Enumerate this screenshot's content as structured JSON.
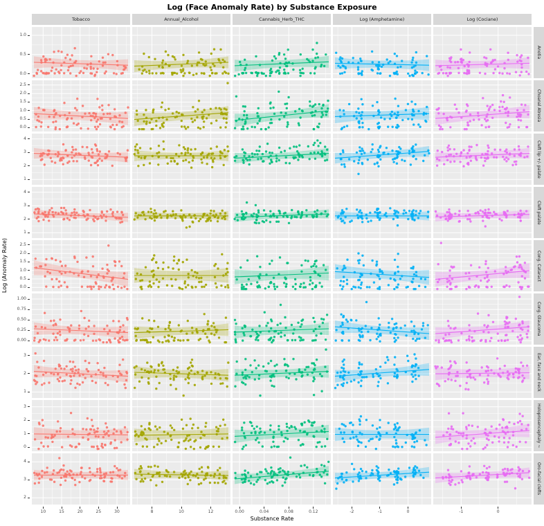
{
  "title": "Log (Face Anomaly Rate) by Substance Exposure",
  "x_axis_label": "Substance Rate",
  "y_axis_label": "Log (Anomaly Rate)",
  "chart_data": {
    "type": "scatter",
    "facet": "grid",
    "legend": "none",
    "panel_bg": "#EBEBEB",
    "strip_bg": "#D8D8D8",
    "gridline_color": "#FFFFFF",
    "n_points": 85,
    "columns": [
      {
        "label": "Tobacco",
        "color": "#F8766D",
        "xmin": 7.5,
        "xmax": 33,
        "ticks": [
          [
            10,
            "10"
          ],
          [
            15,
            "15"
          ],
          [
            20,
            "20"
          ],
          [
            25,
            "25"
          ],
          [
            30,
            "30"
          ]
        ]
      },
      {
        "label": "Annual_Alcohol",
        "color": "#A3A500",
        "xmin": 6.8,
        "xmax": 13.2,
        "ticks": [
          [
            8,
            "8"
          ],
          [
            10,
            "10"
          ],
          [
            12,
            "12"
          ]
        ]
      },
      {
        "label": "Cannabis_Herb_THC",
        "color": "#00BF7D",
        "xmin": -0.008,
        "xmax": 0.145,
        "ticks": [
          [
            0,
            "0.00"
          ],
          [
            0.04,
            "0.04"
          ],
          [
            0.08,
            "0.08"
          ],
          [
            0.12,
            "0.12"
          ]
        ],
        "xlevels": [
          0.1,
          0.25,
          0.4,
          0.55,
          0.7,
          0.85
        ],
        "snap": 0.35
      },
      {
        "label": "Log (Amphetamine)",
        "color": "#00B0F6",
        "xmin": -2.6,
        "xmax": 0.75,
        "ticks": [
          [
            -2,
            "-2"
          ],
          [
            -1,
            "-1"
          ],
          [
            0,
            "0"
          ]
        ],
        "xlevels": [
          0.08,
          0.27,
          0.46,
          0.65,
          0.84
        ],
        "snap": 0.55
      },
      {
        "label": "Log (Cociane)",
        "color": "#E76BF3",
        "xmin": -1.7,
        "xmax": 0.85,
        "ticks": [
          [
            -1,
            "-1"
          ],
          [
            0,
            "0"
          ]
        ],
        "xlevels": [
          0.15,
          0.35,
          0.55,
          0.75,
          0.9
        ],
        "snap": 0.4
      }
    ],
    "rows": [
      {
        "label": "Anotia",
        "ymin": -0.08,
        "ymax": 1.18,
        "ticks": [
          [
            0,
            "0.0"
          ],
          [
            0.5,
            "0.5"
          ],
          [
            1,
            "1.0"
          ]
        ]
      },
      {
        "label": "Choanal Atresia",
        "ymin": -0.15,
        "ymax": 2.7,
        "ticks": [
          [
            0,
            "0.0"
          ],
          [
            0.5,
            "0.5"
          ],
          [
            1,
            "1.0"
          ],
          [
            1.5,
            "1.5"
          ],
          [
            2,
            "2.0"
          ],
          [
            2.5,
            "2.5"
          ]
        ]
      },
      {
        "label": "Cleft lip +/- palate",
        "ymin": 0.7,
        "ymax": 4.3,
        "ticks": [
          [
            1,
            "1"
          ],
          [
            2,
            "2"
          ],
          [
            3,
            "3"
          ],
          [
            4,
            "4"
          ]
        ]
      },
      {
        "label": "Cleft palate",
        "ymin": 0.7,
        "ymax": 4.3,
        "ticks": [
          [
            1,
            "1"
          ],
          [
            2,
            "2"
          ],
          [
            3,
            "3"
          ],
          [
            4,
            "4"
          ]
        ]
      },
      {
        "label": "Cong. Cataract",
        "ymin": -0.15,
        "ymax": 2.7,
        "ticks": [
          [
            0,
            "0.0"
          ],
          [
            0.5,
            "0.5"
          ],
          [
            1,
            "1.0"
          ],
          [
            1.5,
            "1.5"
          ],
          [
            2,
            "2.0"
          ],
          [
            2.5,
            "2.5"
          ]
        ]
      },
      {
        "label": "Cong. Glaucoma",
        "ymin": -0.06,
        "ymax": 1.1,
        "ticks": [
          [
            0,
            "0.00"
          ],
          [
            0.25,
            "0.25"
          ],
          [
            0.5,
            "0.50"
          ],
          [
            0.75,
            "0.75"
          ],
          [
            1,
            "1.00"
          ]
        ]
      },
      {
        "label": "Ear, face and neck",
        "ymin": 0.75,
        "ymax": 3.4,
        "ticks": [
          [
            1,
            "1"
          ],
          [
            2,
            "2"
          ],
          [
            3,
            "3"
          ]
        ]
      },
      {
        "label": "Holoprosencephaly ~",
        "ymin": -0.2,
        "ymax": 3.4,
        "ticks": [
          [
            0,
            "0"
          ],
          [
            1,
            "1"
          ],
          [
            2,
            "2"
          ],
          [
            3,
            "3"
          ]
        ]
      },
      {
        "label": "Oro-facial clefts",
        "ymin": 1.7,
        "ymax": 4.4,
        "ticks": [
          [
            2,
            "2"
          ],
          [
            3,
            "3"
          ],
          [
            4,
            "4"
          ]
        ]
      }
    ],
    "panels": [
      [
        {
          "s": 101,
          "t0": 0.3,
          "t1": 0.24,
          "n": 0.16,
          "z": 0.22
        },
        {
          "s": 102,
          "t0": 0.22,
          "t1": 0.3,
          "n": 0.16,
          "z": 0.22
        },
        {
          "s": 103,
          "t0": 0.23,
          "t1": 0.31,
          "n": 0.16,
          "z": 0.18
        },
        {
          "s": 104,
          "t0": 0.28,
          "t1": 0.24,
          "n": 0.16,
          "z": 0.22
        },
        {
          "s": 105,
          "t0": 0.23,
          "t1": 0.28,
          "n": 0.16,
          "z": 0.26
        }
      ],
      [
        {
          "s": 201,
          "t0": 0.34,
          "t1": 0.24,
          "n": 0.2,
          "z": 0.14
        },
        {
          "s": 202,
          "t0": 0.22,
          "t1": 0.36,
          "n": 0.2,
          "z": 0.12
        },
        {
          "s": 203,
          "t0": 0.2,
          "t1": 0.4,
          "n": 0.2,
          "z": 0.1
        },
        {
          "s": 204,
          "t0": 0.28,
          "t1": 0.34,
          "n": 0.2,
          "z": 0.12
        },
        {
          "s": 205,
          "t0": 0.24,
          "t1": 0.38,
          "n": 0.2,
          "z": 0.12
        }
      ],
      [
        {
          "s": 301,
          "t0": 0.62,
          "t1": 0.54,
          "n": 0.13,
          "z": 0
        },
        {
          "s": 302,
          "t0": 0.57,
          "t1": 0.57,
          "n": 0.13,
          "z": 0
        },
        {
          "s": 303,
          "t0": 0.52,
          "t1": 0.62,
          "n": 0.13,
          "z": 0
        },
        {
          "s": 304,
          "t0": 0.52,
          "t1": 0.66,
          "n": 0.13,
          "z": 0
        },
        {
          "s": 305,
          "t0": 0.54,
          "t1": 0.62,
          "n": 0.13,
          "z": 0
        }
      ],
      [
        {
          "s": 401,
          "t0": 0.47,
          "t1": 0.4,
          "n": 0.09,
          "z": 0
        },
        {
          "s": 402,
          "t0": 0.43,
          "t1": 0.43,
          "n": 0.09,
          "z": 0
        },
        {
          "s": 403,
          "t0": 0.4,
          "t1": 0.47,
          "n": 0.09,
          "z": 0
        },
        {
          "s": 404,
          "t0": 0.43,
          "t1": 0.43,
          "n": 0.09,
          "z": 0
        },
        {
          "s": 405,
          "t0": 0.41,
          "t1": 0.46,
          "n": 0.09,
          "z": 0
        }
      ],
      [
        {
          "s": 501,
          "t0": 0.46,
          "t1": 0.22,
          "n": 0.24,
          "z": 0.18
        },
        {
          "s": 502,
          "t0": 0.3,
          "t1": 0.3,
          "n": 0.24,
          "z": 0.18
        },
        {
          "s": 503,
          "t0": 0.27,
          "t1": 0.35,
          "n": 0.24,
          "z": 0.14
        },
        {
          "s": 504,
          "t0": 0.38,
          "t1": 0.26,
          "n": 0.24,
          "z": 0.14
        },
        {
          "s": 505,
          "t0": 0.22,
          "t1": 0.4,
          "n": 0.24,
          "z": 0.18
        }
      ],
      [
        {
          "s": 601,
          "t0": 0.3,
          "t1": 0.22,
          "n": 0.18,
          "z": 0.28
        },
        {
          "s": 602,
          "t0": 0.22,
          "t1": 0.28,
          "n": 0.18,
          "z": 0.28
        },
        {
          "s": 603,
          "t0": 0.23,
          "t1": 0.3,
          "n": 0.18,
          "z": 0.24
        },
        {
          "s": 604,
          "t0": 0.34,
          "t1": 0.2,
          "n": 0.18,
          "z": 0.2
        },
        {
          "s": 605,
          "t0": 0.2,
          "t1": 0.34,
          "n": 0.18,
          "z": 0.24
        }
      ],
      [
        {
          "s": 701,
          "t0": 0.52,
          "t1": 0.42,
          "n": 0.18,
          "z": 0
        },
        {
          "s": 702,
          "t0": 0.5,
          "t1": 0.44,
          "n": 0.18,
          "z": 0
        },
        {
          "s": 703,
          "t0": 0.44,
          "t1": 0.52,
          "n": 0.18,
          "z": 0
        },
        {
          "s": 704,
          "t0": 0.42,
          "t1": 0.56,
          "n": 0.18,
          "z": 0
        },
        {
          "s": 705,
          "t0": 0.47,
          "t1": 0.49,
          "n": 0.18,
          "z": 0
        }
      ],
      [
        {
          "s": 801,
          "t0": 0.33,
          "t1": 0.31,
          "n": 0.2,
          "z": 0.1
        },
        {
          "s": 802,
          "t0": 0.3,
          "t1": 0.33,
          "n": 0.2,
          "z": 0.1
        },
        {
          "s": 803,
          "t0": 0.28,
          "t1": 0.38,
          "n": 0.2,
          "z": 0.08
        },
        {
          "s": 804,
          "t0": 0.32,
          "t1": 0.32,
          "n": 0.2,
          "z": 0.1
        },
        {
          "s": 805,
          "t0": 0.26,
          "t1": 0.4,
          "n": 0.2,
          "z": 0.1
        }
      ],
      [
        {
          "s": 901,
          "t0": 0.58,
          "t1": 0.58,
          "n": 0.12,
          "z": 0
        },
        {
          "s": 902,
          "t0": 0.6,
          "t1": 0.57,
          "n": 0.12,
          "z": 0
        },
        {
          "s": 903,
          "t0": 0.5,
          "t1": 0.66,
          "n": 0.12,
          "z": 0
        },
        {
          "s": 904,
          "t0": 0.52,
          "t1": 0.64,
          "n": 0.12,
          "z": 0
        },
        {
          "s": 905,
          "t0": 0.52,
          "t1": 0.63,
          "n": 0.12,
          "z": 0
        }
      ]
    ]
  }
}
